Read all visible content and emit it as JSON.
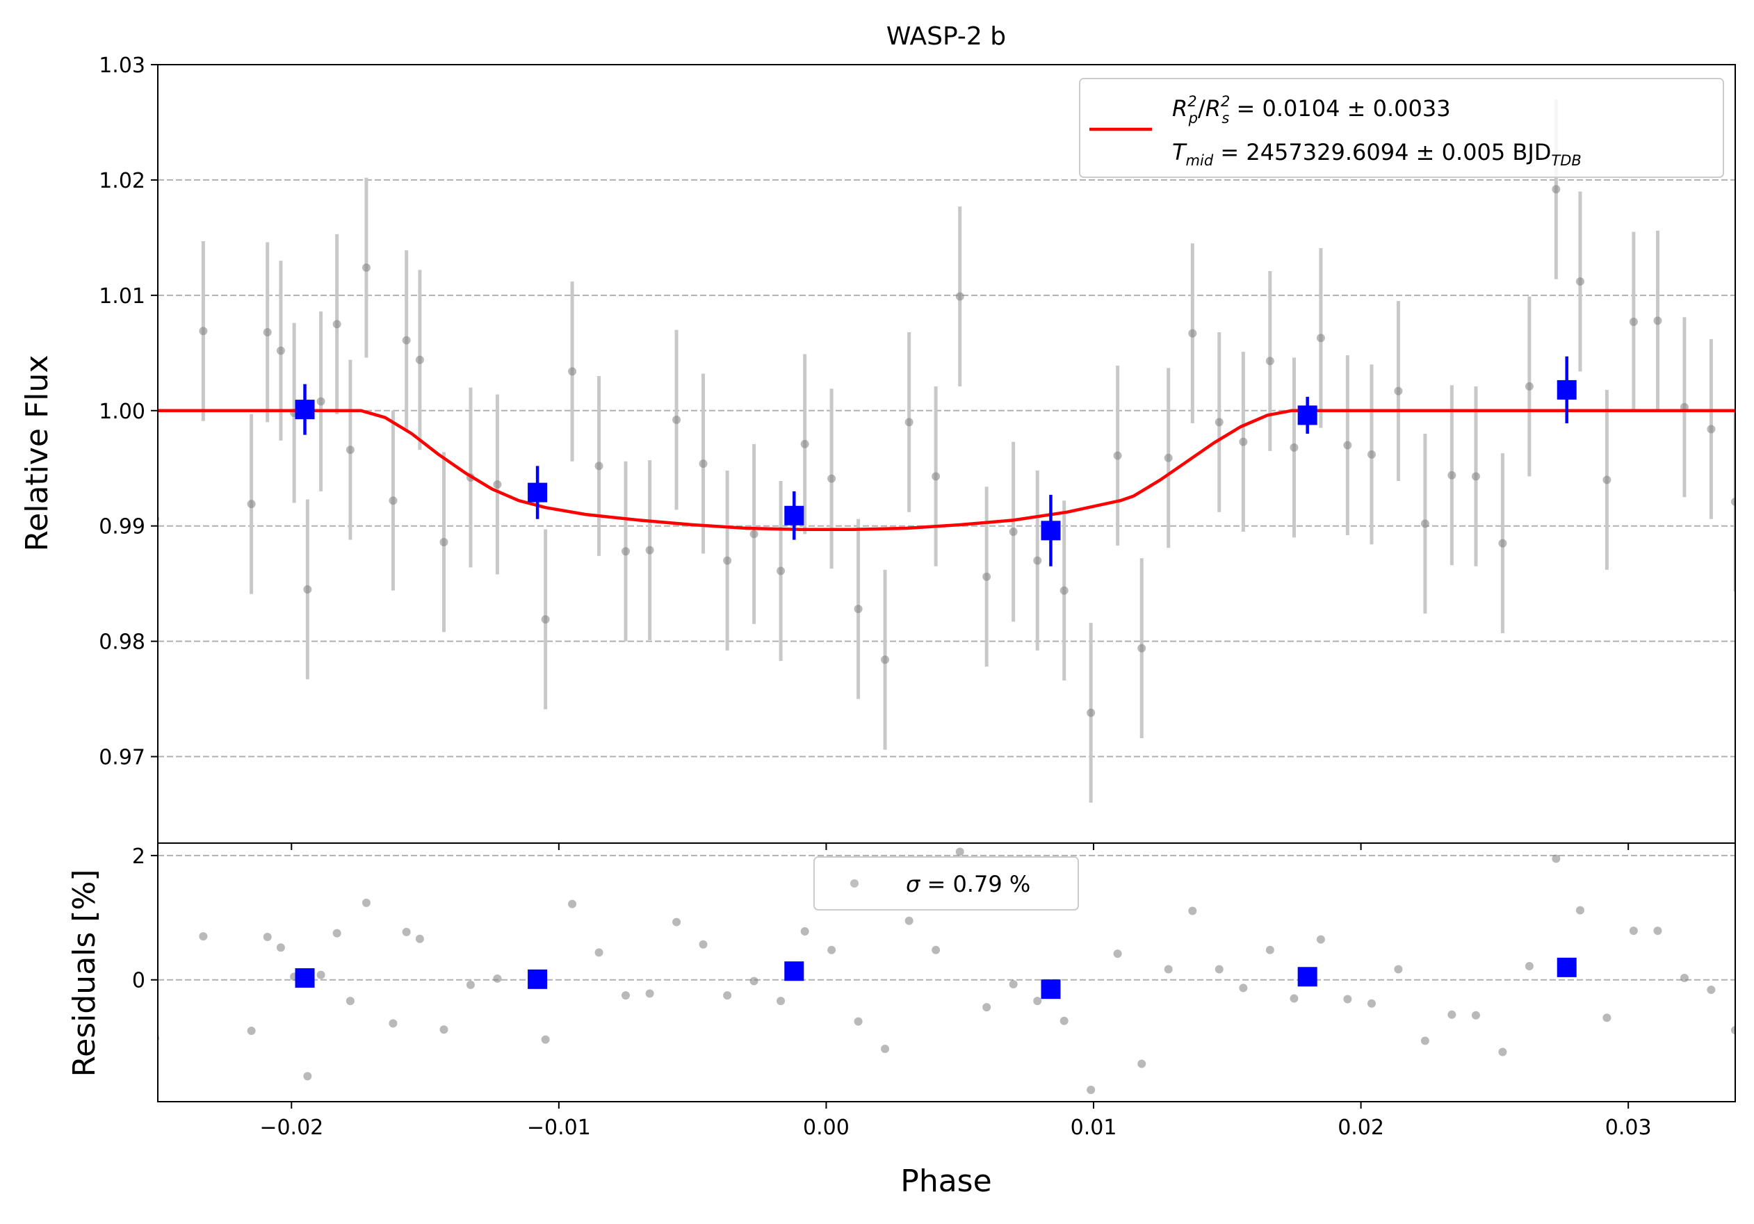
{
  "chart_data": [
    {
      "type": "scatter",
      "title": "WASP-2 b",
      "xlabel": "",
      "ylabel": "Relative Flux",
      "xlim": [
        -0.025,
        0.034
      ],
      "ylim": [
        0.9625,
        1.03
      ],
      "yticks": [
        0.97,
        0.98,
        0.99,
        1.0,
        1.01,
        1.02,
        1.03
      ],
      "ytick_labels": [
        "0.97",
        "0.98",
        "0.99",
        "1.00",
        "1.01",
        "1.02",
        "1.03"
      ],
      "grid": "horizontal dashed",
      "legend": {
        "position": "top-right",
        "line_label": "R_p^2/R_s^2 = 0.0104 ± 0.0033",
        "line2_label": "T_mid = 2457329.6094 ± 0.005 BJD_TDB",
        "rp_base": "R",
        "rp_sub": "p",
        "rp_sup": "2",
        "rs_base": "R",
        "rs_sub": "s",
        "rs_sup": "2",
        "rp_value_text": " = 0.0104 ± 0.0033",
        "t_base": "T",
        "t_sub": "mid",
        "t_value_text": " = 2457329.6094 ± 0.005 BJD",
        "t_unit_sub": "TDB"
      },
      "colors": {
        "data": "#808080",
        "error": "#c8c8c8",
        "binned": "#0000ff",
        "model": "#ff0000"
      },
      "series": [
        {
          "kind": "data",
          "error": 0.0078,
          "x": [
            -0.0251,
            -0.0233,
            -0.0215,
            -0.0209,
            -0.0204,
            -0.0199,
            -0.0194,
            -0.0189,
            -0.0183,
            -0.0178,
            -0.0172,
            -0.0162,
            -0.0157,
            -0.0152,
            -0.0143,
            -0.0133,
            -0.0123,
            -0.0105,
            -0.0095,
            -0.0085,
            -0.0075,
            -0.0066,
            -0.0056,
            -0.0046,
            -0.0037,
            -0.0027,
            -0.0017,
            -0.0008,
            0.0002,
            0.0012,
            0.0022,
            0.0031,
            0.0041,
            0.005,
            0.006,
            0.007,
            0.0079,
            0.0089,
            0.0099,
            0.0109,
            0.0118,
            0.0128,
            0.0137,
            0.0147,
            0.0156,
            0.0166,
            0.0175,
            0.0185,
            0.0195,
            0.0204,
            0.0214,
            0.0224,
            0.0234,
            0.0243,
            0.0253,
            0.0263,
            0.0273,
            0.0282,
            0.0292,
            0.0302,
            0.0311,
            0.0321,
            0.0331,
            0.034
          ],
          "y": [
            0.9906,
            1.0069,
            0.9919,
            1.0068,
            1.0052,
            0.9998,
            0.9845,
            1.0008,
            1.0075,
            0.9966,
            1.0124,
            0.9922,
            1.0061,
            1.0044,
            0.9886,
            0.9942,
            0.9936,
            0.9819,
            1.0034,
            0.9952,
            0.9878,
            0.9879,
            0.9992,
            0.9954,
            0.987,
            0.9893,
            0.9861,
            0.9971,
            0.9941,
            0.9828,
            0.9784,
            0.999,
            0.9943,
            1.0099,
            0.9856,
            0.9895,
            0.987,
            0.9844,
            0.9738,
            0.9961,
            0.9794,
            0.9959,
            1.0067,
            0.999,
            0.9973,
            1.0043,
            0.9968,
            1.0063,
            0.997,
            0.9962,
            1.0017,
            0.9902,
            0.9944,
            0.9943,
            0.9885,
            1.0021,
            1.0192,
            1.0112,
            0.994,
            1.0077,
            1.0078,
            1.0003,
            0.9984,
            0.9921
          ]
        },
        {
          "kind": "binned",
          "x": [
            -0.0195,
            -0.0108,
            -0.0012,
            0.0084,
            0.018,
            0.0277
          ],
          "y": [
            1.0001,
            0.9929,
            0.9909,
            0.9896,
            0.9996,
            1.0018
          ],
          "error": [
            0.0022,
            0.0023,
            0.0021,
            0.0031,
            0.0016,
            0.0029
          ]
        },
        {
          "kind": "model",
          "x": [
            -0.025,
            -0.0174,
            -0.0165,
            -0.0155,
            -0.0145,
            -0.0135,
            -0.0125,
            -0.0115,
            -0.0105,
            -0.009,
            -0.007,
            -0.005,
            -0.003,
            -0.001,
            0.0,
            0.001,
            0.003,
            0.005,
            0.007,
            0.009,
            0.011,
            0.0115,
            0.0125,
            0.0135,
            0.0145,
            0.0155,
            0.0165,
            0.0174,
            0.034
          ],
          "y": [
            1.0,
            1.0,
            0.9994,
            0.998,
            0.9962,
            0.9946,
            0.9932,
            0.9922,
            0.9916,
            0.991,
            0.9905,
            0.9901,
            0.9898,
            0.9897,
            0.9897,
            0.9897,
            0.9898,
            0.9901,
            0.9905,
            0.9912,
            0.9922,
            0.9926,
            0.994,
            0.9956,
            0.9972,
            0.9986,
            0.9996,
            1.0,
            1.0
          ]
        }
      ]
    },
    {
      "type": "scatter",
      "title": "",
      "xlabel": "Phase",
      "ylabel": "Residuals [%]",
      "xlim": [
        -0.025,
        0.034
      ],
      "ylim": [
        -1.96,
        2.2
      ],
      "yticks": [
        0,
        2
      ],
      "ytick_labels": [
        "0",
        "2"
      ],
      "xticks": [
        -0.02,
        -0.01,
        0.0,
        0.01,
        0.02,
        0.03
      ],
      "xtick_labels": [
        "−0.02",
        "−0.01",
        "0.00",
        "0.01",
        "0.02",
        "0.03"
      ],
      "grid": "horizontal dashed",
      "legend": {
        "position": "top-center",
        "marker_label": "σ = 0.79 %",
        "sigma_symbol": "σ",
        "sigma_value_text": " = 0.79 %"
      },
      "series": [
        {
          "kind": "data",
          "x": [
            -0.0251,
            -0.0233,
            -0.0215,
            -0.0209,
            -0.0204,
            -0.0199,
            -0.0194,
            -0.0189,
            -0.0183,
            -0.0178,
            -0.0172,
            -0.0162,
            -0.0157,
            -0.0152,
            -0.0143,
            -0.0133,
            -0.0123,
            -0.0105,
            -0.0095,
            -0.0085,
            -0.0075,
            -0.0066,
            -0.0056,
            -0.0046,
            -0.0037,
            -0.0027,
            -0.0017,
            -0.0008,
            0.0002,
            0.0012,
            0.0022,
            0.0031,
            0.0041,
            0.005,
            0.006,
            0.007,
            0.0079,
            0.0089,
            0.0099,
            0.0109,
            0.0118,
            0.0128,
            0.0137,
            0.0147,
            0.0156,
            0.0166,
            0.0175,
            0.0185,
            0.0195,
            0.0204,
            0.0214,
            0.0224,
            0.0234,
            0.0243,
            0.0253,
            0.0263,
            0.0273,
            0.0282,
            0.0292,
            0.0302,
            0.0311,
            0.0321,
            0.0331,
            0.034
          ],
          "y": [
            -0.94,
            0.7,
            -0.82,
            0.69,
            0.52,
            0.05,
            -1.55,
            0.08,
            0.75,
            -0.34,
            1.24,
            -0.7,
            0.77,
            0.66,
            -0.8,
            -0.08,
            0.02,
            -0.96,
            1.22,
            0.44,
            -0.25,
            -0.22,
            0.93,
            0.57,
            -0.25,
            -0.02,
            -0.34,
            0.78,
            0.48,
            -0.67,
            -1.11,
            0.95,
            0.48,
            2.06,
            -0.44,
            -0.07,
            -0.34,
            -0.66,
            -1.77,
            0.42,
            -1.35,
            0.17,
            1.11,
            0.17,
            -0.13,
            0.48,
            -0.3,
            0.65,
            -0.31,
            -0.38,
            0.17,
            -0.98,
            -0.56,
            -0.57,
            -1.16,
            0.22,
            1.95,
            1.12,
            -0.61,
            0.79,
            0.79,
            0.03,
            -0.16,
            -0.81
          ]
        },
        {
          "kind": "binned",
          "x": [
            -0.0195,
            -0.0108,
            -0.0012,
            0.0084,
            0.018,
            0.0277
          ],
          "y": [
            0.03,
            0.01,
            0.14,
            -0.15,
            0.05,
            0.2
          ]
        }
      ]
    }
  ]
}
